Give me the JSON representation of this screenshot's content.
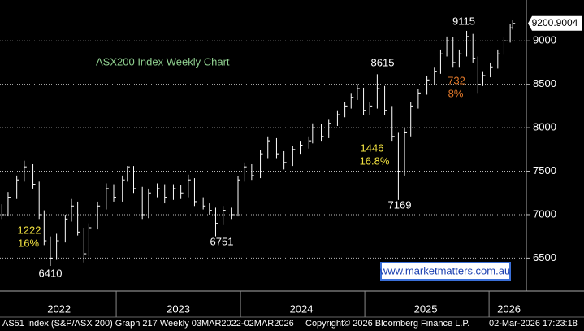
{
  "chart_data": {
    "type": "hlc",
    "title": "ASX200 Index Weekly Chart",
    "x": [
      2022.08,
      2022.13,
      2022.2,
      2022.26,
      2022.33,
      2022.38,
      2022.42,
      2022.47,
      2022.52,
      2022.59,
      2022.64,
      2022.69,
      2022.74,
      2022.78,
      2022.85,
      2022.92,
      2022.98,
      2023.05,
      2023.09,
      2023.14,
      2023.21,
      2023.26,
      2023.33,
      2023.39,
      2023.46,
      2023.52,
      2023.58,
      2023.63,
      2023.7,
      2023.75,
      2023.8,
      2023.86,
      2023.93,
      2023.98,
      2024.03,
      2024.09,
      2024.16,
      2024.22,
      2024.29,
      2024.35,
      2024.42,
      2024.48,
      2024.55,
      2024.58,
      2024.65,
      2024.71,
      2024.78,
      2024.84,
      2024.89,
      2024.94,
      2024.99,
      2025.04,
      2025.1,
      2025.16,
      2025.22,
      2025.27,
      2025.32,
      2025.37,
      2025.43,
      2025.5,
      2025.56,
      2025.61,
      2025.66,
      2025.71,
      2025.76,
      2025.82,
      2025.87,
      2025.91,
      2025.95,
      2026.01,
      2026.07,
      2026.12,
      2026.17,
      2026.19
    ],
    "high": [
      7120,
      7260,
      7450,
      7620,
      7580,
      7380,
      7050,
      6750,
      6780,
      7000,
      7180,
      7150,
      6850,
      6900,
      7150,
      7360,
      7350,
      7450,
      7560,
      7560,
      7320,
      7300,
      7360,
      7350,
      7350,
      7340,
      7460,
      7420,
      7200,
      7130,
      7080,
      7100,
      7080,
      7440,
      7600,
      7580,
      7740,
      7900,
      7880,
      7730,
      7790,
      7850,
      7900,
      8050,
      8040,
      8100,
      8200,
      8300,
      8400,
      8500,
      8460,
      8300,
      8615,
      8480,
      8250,
      7950,
      8000,
      8300,
      8450,
      8600,
      8700,
      8900,
      9050,
      9040,
      8900,
      9115,
      9080,
      8820,
      8650,
      8750,
      8900,
      9050,
      9190,
      9240
    ],
    "low": [
      6950,
      6980,
      7180,
      7380,
      7300,
      6950,
      6650,
      6410,
      6480,
      6680,
      6920,
      6760,
      6450,
      6520,
      6830,
      7060,
      7150,
      7150,
      7380,
      7250,
      6950,
      6960,
      7200,
      7130,
      7170,
      7180,
      7200,
      7100,
      7060,
      7000,
      6751,
      6880,
      6950,
      6980,
      7380,
      7400,
      7420,
      7650,
      7650,
      7520,
      7560,
      7700,
      7760,
      7820,
      7850,
      7880,
      8020,
      8120,
      8220,
      8320,
      8150,
      8150,
      8220,
      8150,
      7850,
      7169,
      7450,
      7900,
      8220,
      8380,
      8500,
      8620,
      8820,
      8700,
      8700,
      8820,
      8750,
      8400,
      8480,
      8580,
      8680,
      8840,
      8980,
      9130
    ],
    "close": [
      7000,
      7200,
      7400,
      7550,
      7350,
      7000,
      6700,
      6500,
      6700,
      6950,
      7100,
      6800,
      6550,
      6850,
      7100,
      7300,
      7200,
      7400,
      7550,
      7300,
      7000,
      7250,
      7300,
      7200,
      7300,
      7250,
      7400,
      7150,
      7100,
      7050,
      6900,
      7050,
      7000,
      7400,
      7550,
      7450,
      7700,
      7850,
      7700,
      7600,
      7750,
      7800,
      7850,
      8000,
      7900,
      8050,
      8150,
      8250,
      8350,
      8450,
      8200,
      8250,
      8450,
      8200,
      7900,
      7500,
      7950,
      8250,
      8400,
      8550,
      8650,
      8850,
      9000,
      8750,
      8850,
      9050,
      8800,
      8500,
      8600,
      8700,
      8850,
      9000,
      9150,
      9200.9004
    ],
    "color": "#ffffff",
    "xlim": [
      2022.065,
      2026.3
    ],
    "xticks": [
      {
        "value": 2022.54,
        "label": "2022"
      },
      {
        "value": 2023.5,
        "label": "2023"
      },
      {
        "value": 2024.49,
        "label": "2024"
      },
      {
        "value": 2025.49,
        "label": "2025"
      },
      {
        "value": 2026.16,
        "label": "2026"
      }
    ],
    "ylim": [
      6120,
      9470
    ],
    "yticks": [
      6500,
      7000,
      7500,
      8000,
      8500,
      9000
    ],
    "grid": true,
    "annotations": [
      "9115",
      "8615",
      "1446",
      "16.8%",
      "7169",
      "732",
      "8%",
      "1222",
      "16%",
      "6410",
      "6751"
    ],
    "watermark": "www.marketmatters.com.au",
    "footer": [
      "AS51 Index (S&P/ASX 200) Graph 217 Weekly 03MAR2022-02MAR2026",
      "Copyright© 2026 Bloomberg Finance L.P.",
      "02-Mar-2026 17:23:18"
    ]
  }
}
